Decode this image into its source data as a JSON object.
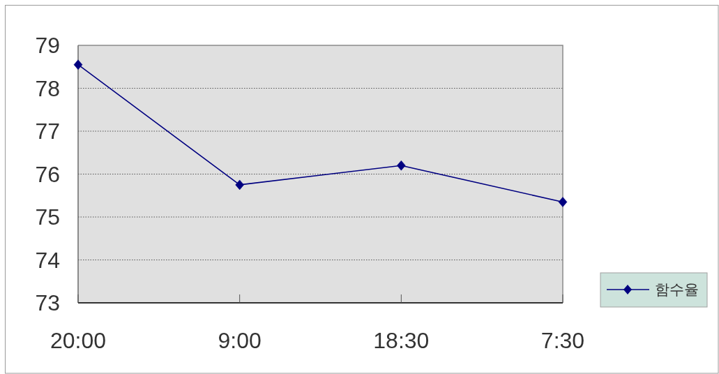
{
  "chart_data": {
    "type": "line",
    "categories": [
      "20:00",
      "9:00",
      "18:30",
      "7:30"
    ],
    "series": [
      {
        "name": "함수율",
        "color": "#000080",
        "values": [
          78.55,
          75.75,
          76.2,
          75.35
        ]
      }
    ],
    "ylim": [
      73,
      79
    ],
    "yticks": [
      73,
      74,
      75,
      76,
      77,
      78,
      79
    ],
    "grid": "y",
    "legend": "bottom right",
    "marker": "diamond",
    "line_style": "solid"
  }
}
